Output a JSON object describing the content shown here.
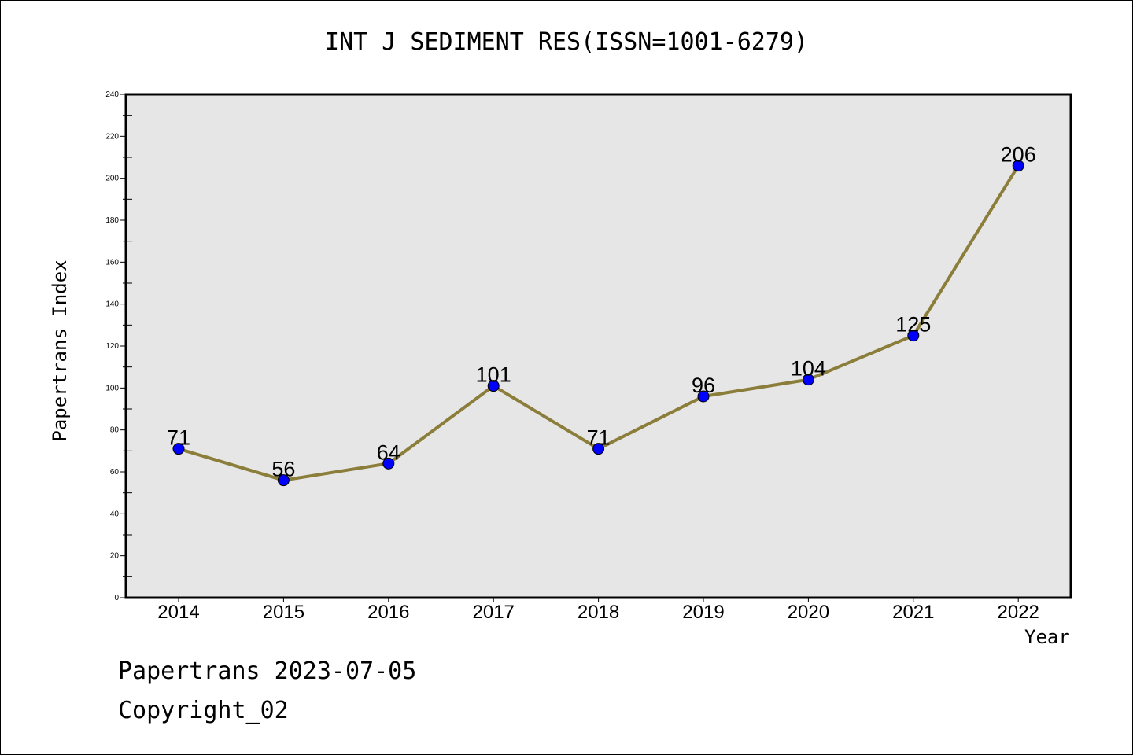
{
  "chart_data": {
    "type": "line",
    "title": "INT J SEDIMENT RES(ISSN=1001-6279)",
    "xlabel": "Year",
    "ylabel": "Papertrans Index",
    "categories": [
      "2014",
      "2015",
      "2016",
      "2017",
      "2018",
      "2019",
      "2020",
      "2021",
      "2022"
    ],
    "series": [
      {
        "values": [
          71,
          56,
          64,
          101,
          71,
          96,
          104,
          125,
          206
        ]
      }
    ],
    "ylim": [
      0,
      240
    ],
    "yticks": [
      "0",
      "20",
      "40",
      "60",
      "80",
      "100",
      "120",
      "140",
      "160",
      "180",
      "200",
      "220",
      "240"
    ],
    "grid": false,
    "colors": {
      "line": "#8b7d3a",
      "marker": "#0000ff",
      "plot_bg": "#e6e6e6"
    }
  },
  "footer": {
    "line1": "Papertrans 2023-07-05",
    "line2": "Copyright_02"
  }
}
